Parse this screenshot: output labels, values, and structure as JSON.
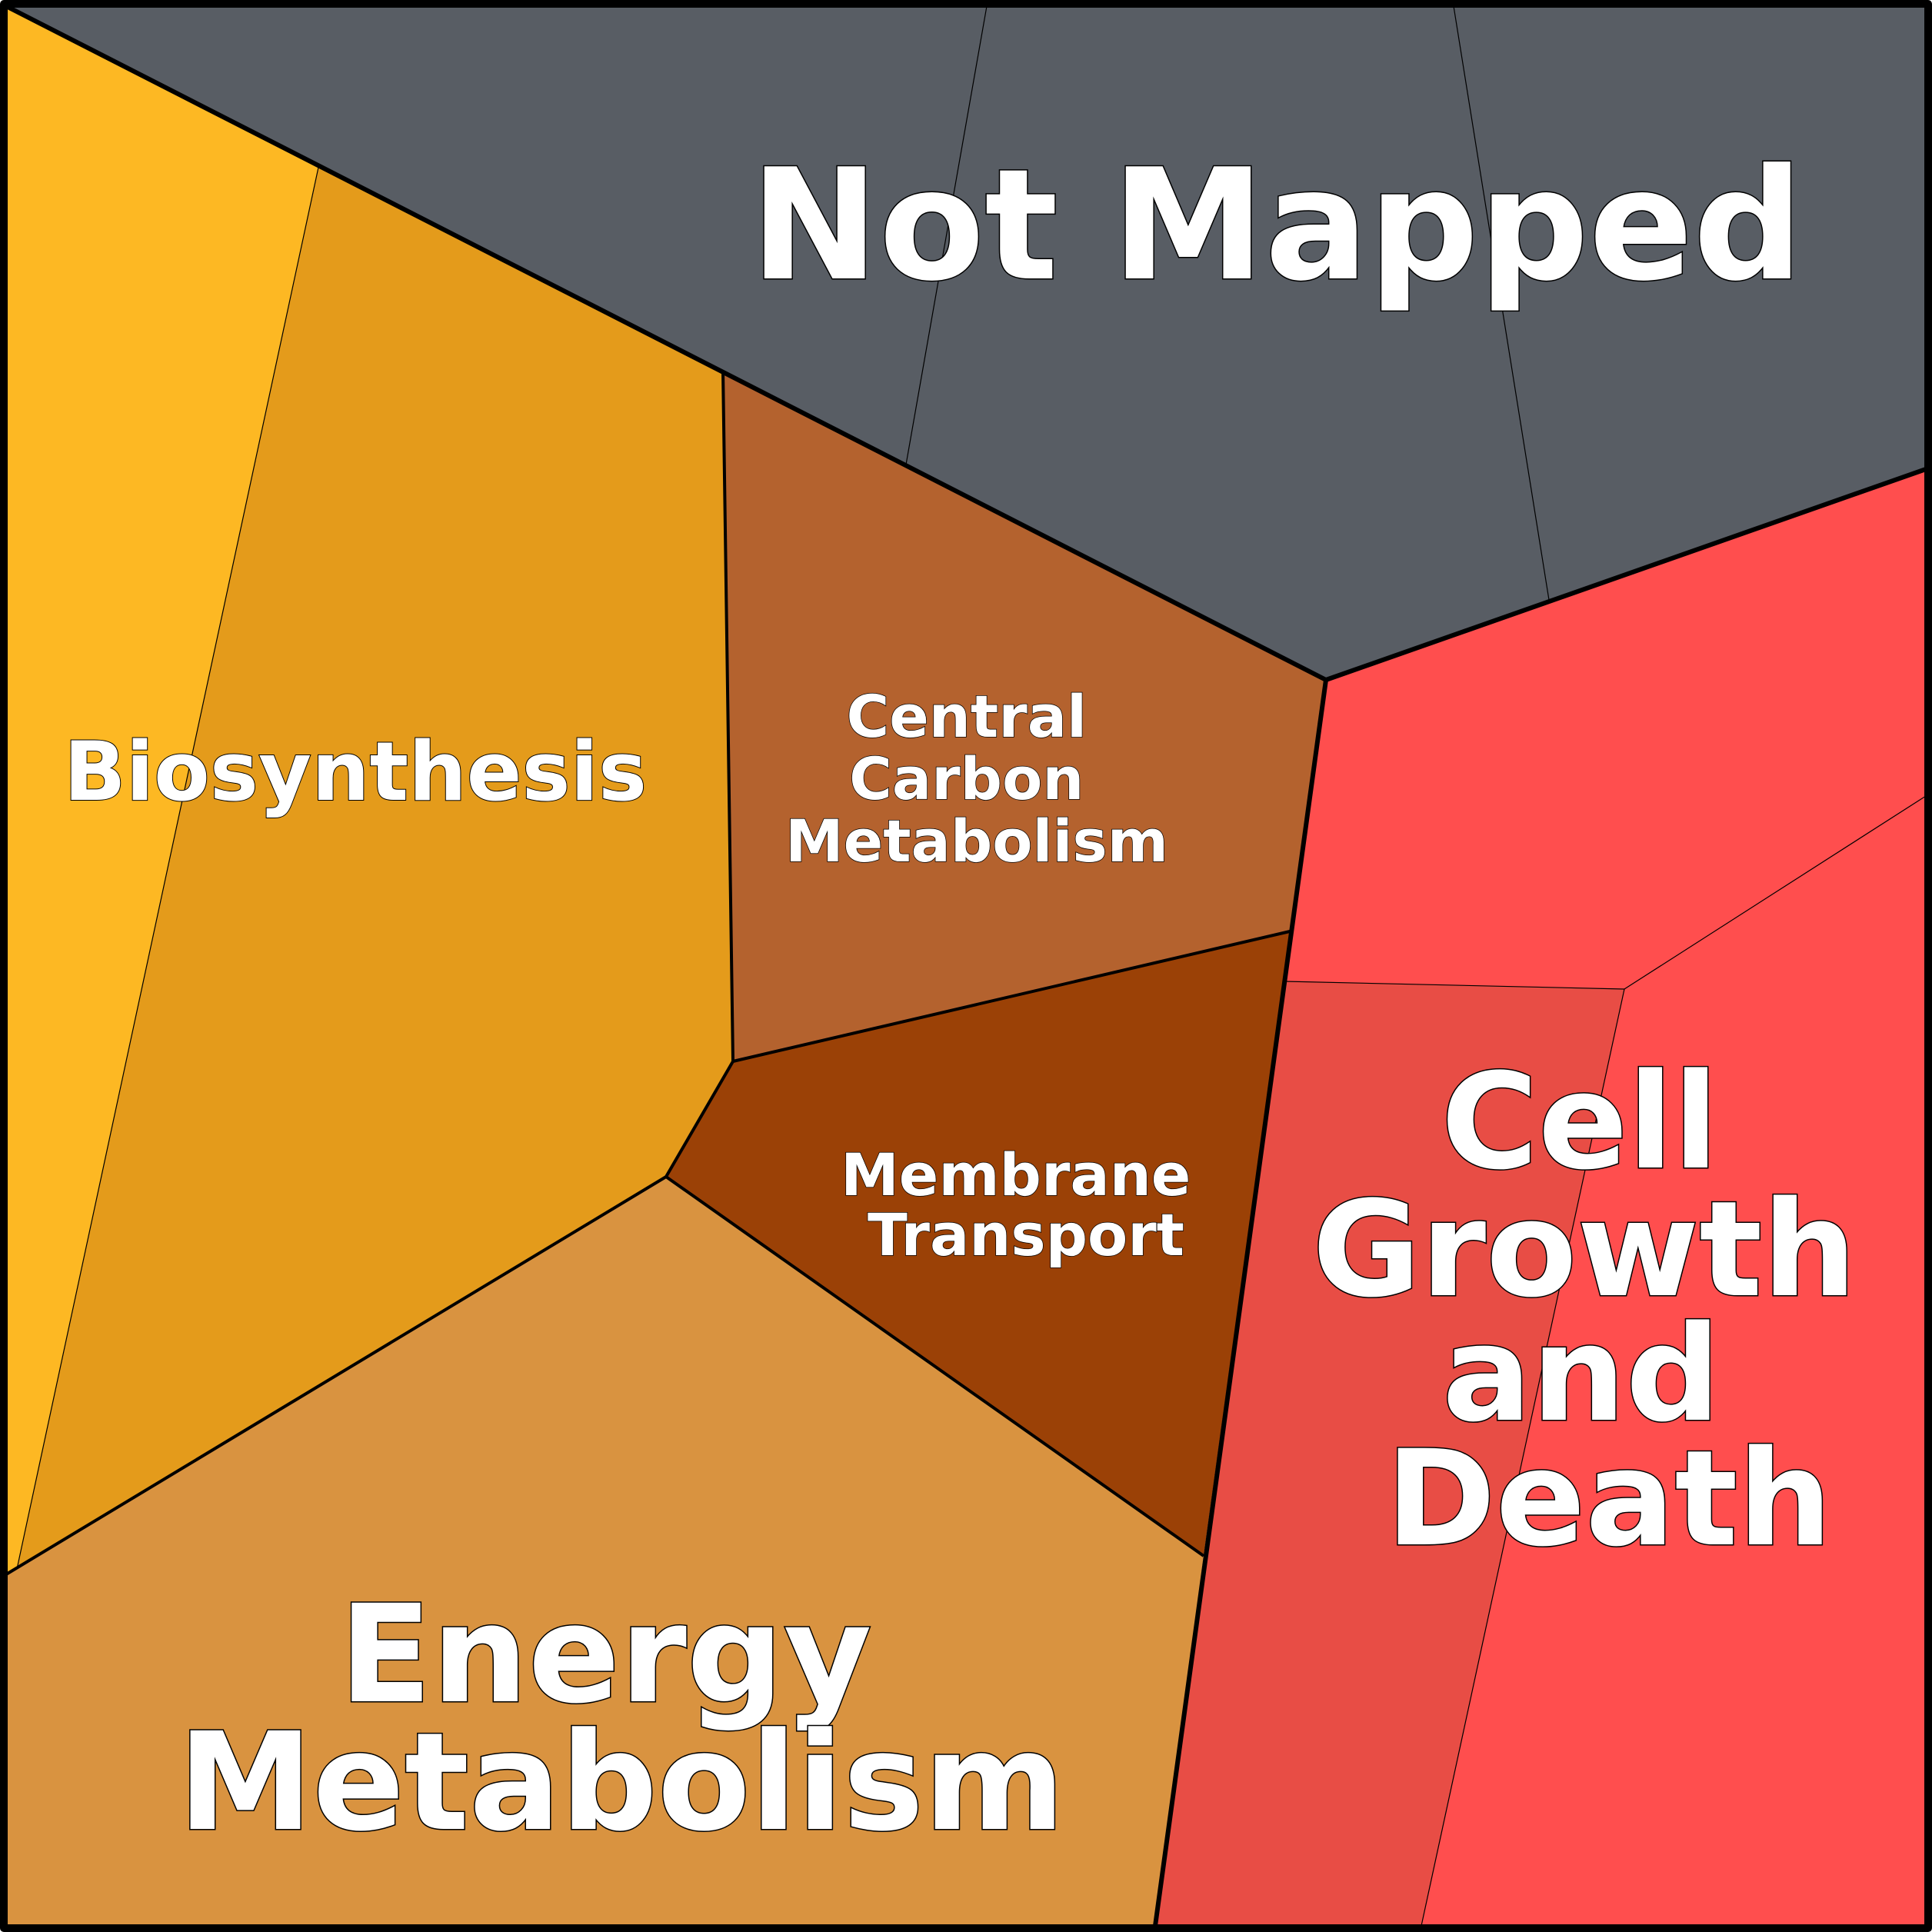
{
  "diagram": {
    "type": "voronoi-treemap",
    "regions": [
      {
        "id": "not-mapped",
        "label_lines": [
          "Not Mapped"
        ],
        "color": "#585d64"
      },
      {
        "id": "biosynthesis",
        "label_lines": [
          "Biosynthesis"
        ],
        "colors": [
          "#fdb823",
          "#e49b1b"
        ]
      },
      {
        "id": "central-carbon-metabolism",
        "label_lines": [
          "Central",
          "Carbon",
          "Metabolism"
        ],
        "color": "#b4622e"
      },
      {
        "id": "membrane-transport",
        "label_lines": [
          "Membrane",
          "Transport"
        ],
        "color": "#9b4106"
      },
      {
        "id": "energy-metabolism",
        "label_lines": [
          "Energy",
          "Metabolism"
        ],
        "color": "#d99340"
      },
      {
        "id": "cell-growth-and-death",
        "label_lines": [
          "Cell",
          "Growth",
          "and",
          "Death"
        ],
        "colors": [
          "#ff4e4e",
          "#e84d45"
        ]
      }
    ],
    "border_color": "#000000"
  }
}
